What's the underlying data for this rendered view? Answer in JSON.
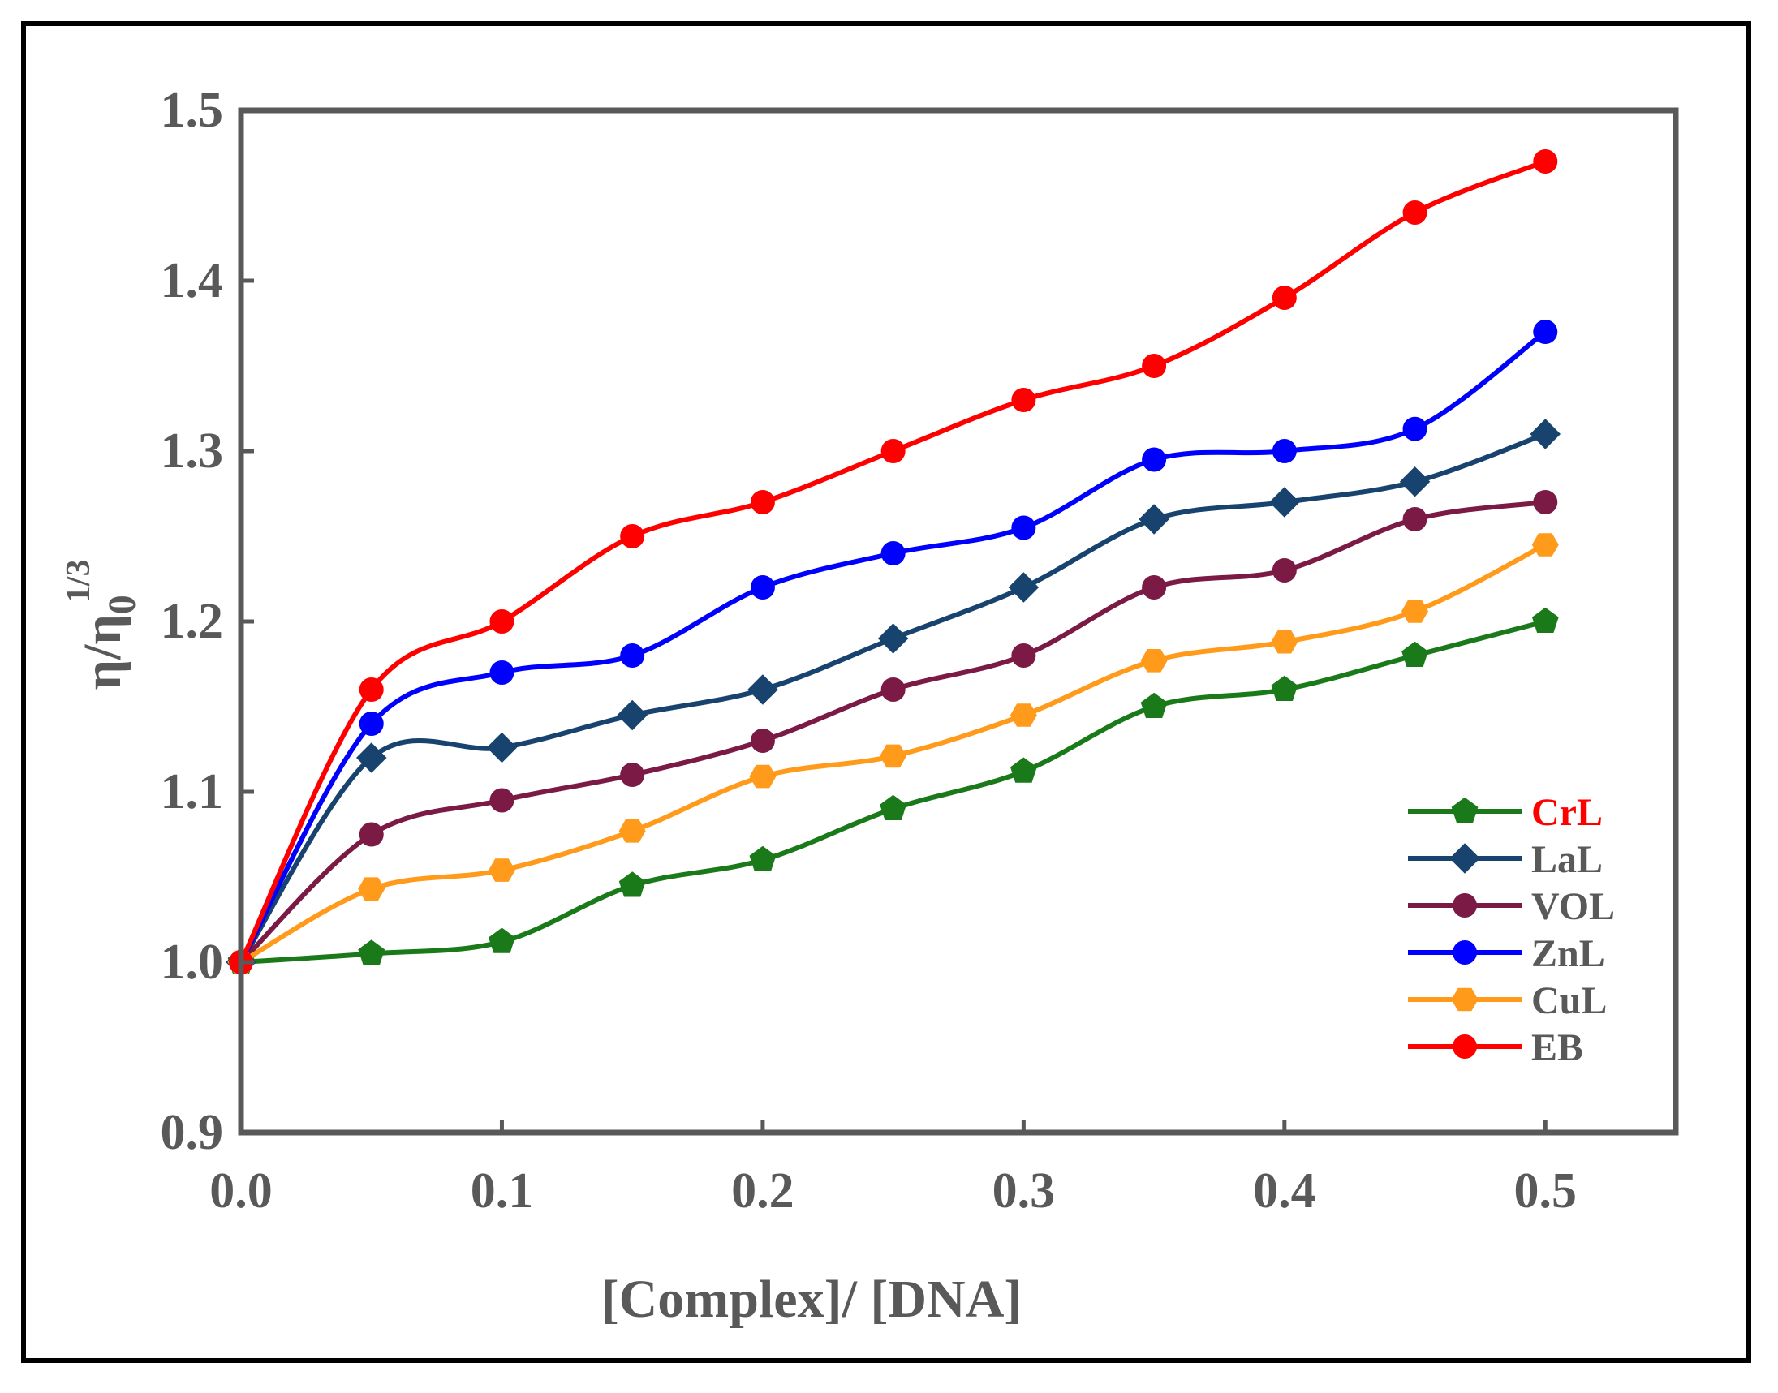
{
  "chart_data": {
    "type": "line",
    "title": "",
    "xlabel": "[Complex]/ [DNA]",
    "ylabel": {
      "main": "η/η",
      "subscript": "0",
      "superscript": "1/3"
    },
    "xlim": [
      0,
      0.55
    ],
    "ylim": [
      0.9,
      1.5
    ],
    "xticks": [
      0.0,
      0.1,
      0.2,
      0.3,
      0.4,
      0.5
    ],
    "xtick_labels": [
      "0.0",
      "0.1",
      "0.2",
      "0.3",
      "0.4",
      "0.5"
    ],
    "yticks": [
      0.9,
      1.0,
      1.1,
      1.2,
      1.3,
      1.4,
      1.5
    ],
    "ytick_labels": [
      "0.9",
      "1.0",
      "1.1",
      "1.2",
      "1.3",
      "1.4",
      "1.5"
    ],
    "grid": false,
    "legend_position": "bottom-right",
    "x": [
      0,
      0.05,
      0.1,
      0.15,
      0.2,
      0.25,
      0.3,
      0.35,
      0.4,
      0.45,
      0.5
    ],
    "series": [
      {
        "name": "CrL",
        "color": "#1a7a1a",
        "label_color": "#ff0000",
        "marker": "pentagon",
        "values": [
          1.0,
          1.005,
          1.012,
          1.045,
          1.06,
          1.09,
          1.112,
          1.15,
          1.16,
          1.18,
          1.2
        ]
      },
      {
        "name": "LaL",
        "color": "#17436e",
        "label_color": "#595959",
        "marker": "diamond",
        "values": [
          1.0,
          1.12,
          1.126,
          1.145,
          1.16,
          1.19,
          1.22,
          1.26,
          1.27,
          1.282,
          1.31
        ]
      },
      {
        "name": "VOL",
        "color": "#7a1a45",
        "label_color": "#595959",
        "marker": "circle",
        "values": [
          1.0,
          1.075,
          1.095,
          1.11,
          1.13,
          1.16,
          1.18,
          1.22,
          1.23,
          1.26,
          1.27
        ]
      },
      {
        "name": "ZnL",
        "color": "#0000ff",
        "label_color": "#595959",
        "marker": "circle",
        "values": [
          1.0,
          1.14,
          1.17,
          1.18,
          1.22,
          1.24,
          1.255,
          1.295,
          1.3,
          1.313,
          1.37
        ]
      },
      {
        "name": "CuL",
        "color": "#ff9a1a",
        "label_color": "#595959",
        "marker": "hexagon",
        "values": [
          1.0,
          1.043,
          1.054,
          1.077,
          1.109,
          1.121,
          1.145,
          1.177,
          1.188,
          1.206,
          1.245
        ]
      },
      {
        "name": "EB",
        "color": "#ff0000",
        "label_color": "#595959",
        "marker": "circle",
        "values": [
          1.0,
          1.16,
          1.2,
          1.25,
          1.27,
          1.3,
          1.33,
          1.35,
          1.39,
          1.44,
          1.47
        ]
      }
    ]
  }
}
